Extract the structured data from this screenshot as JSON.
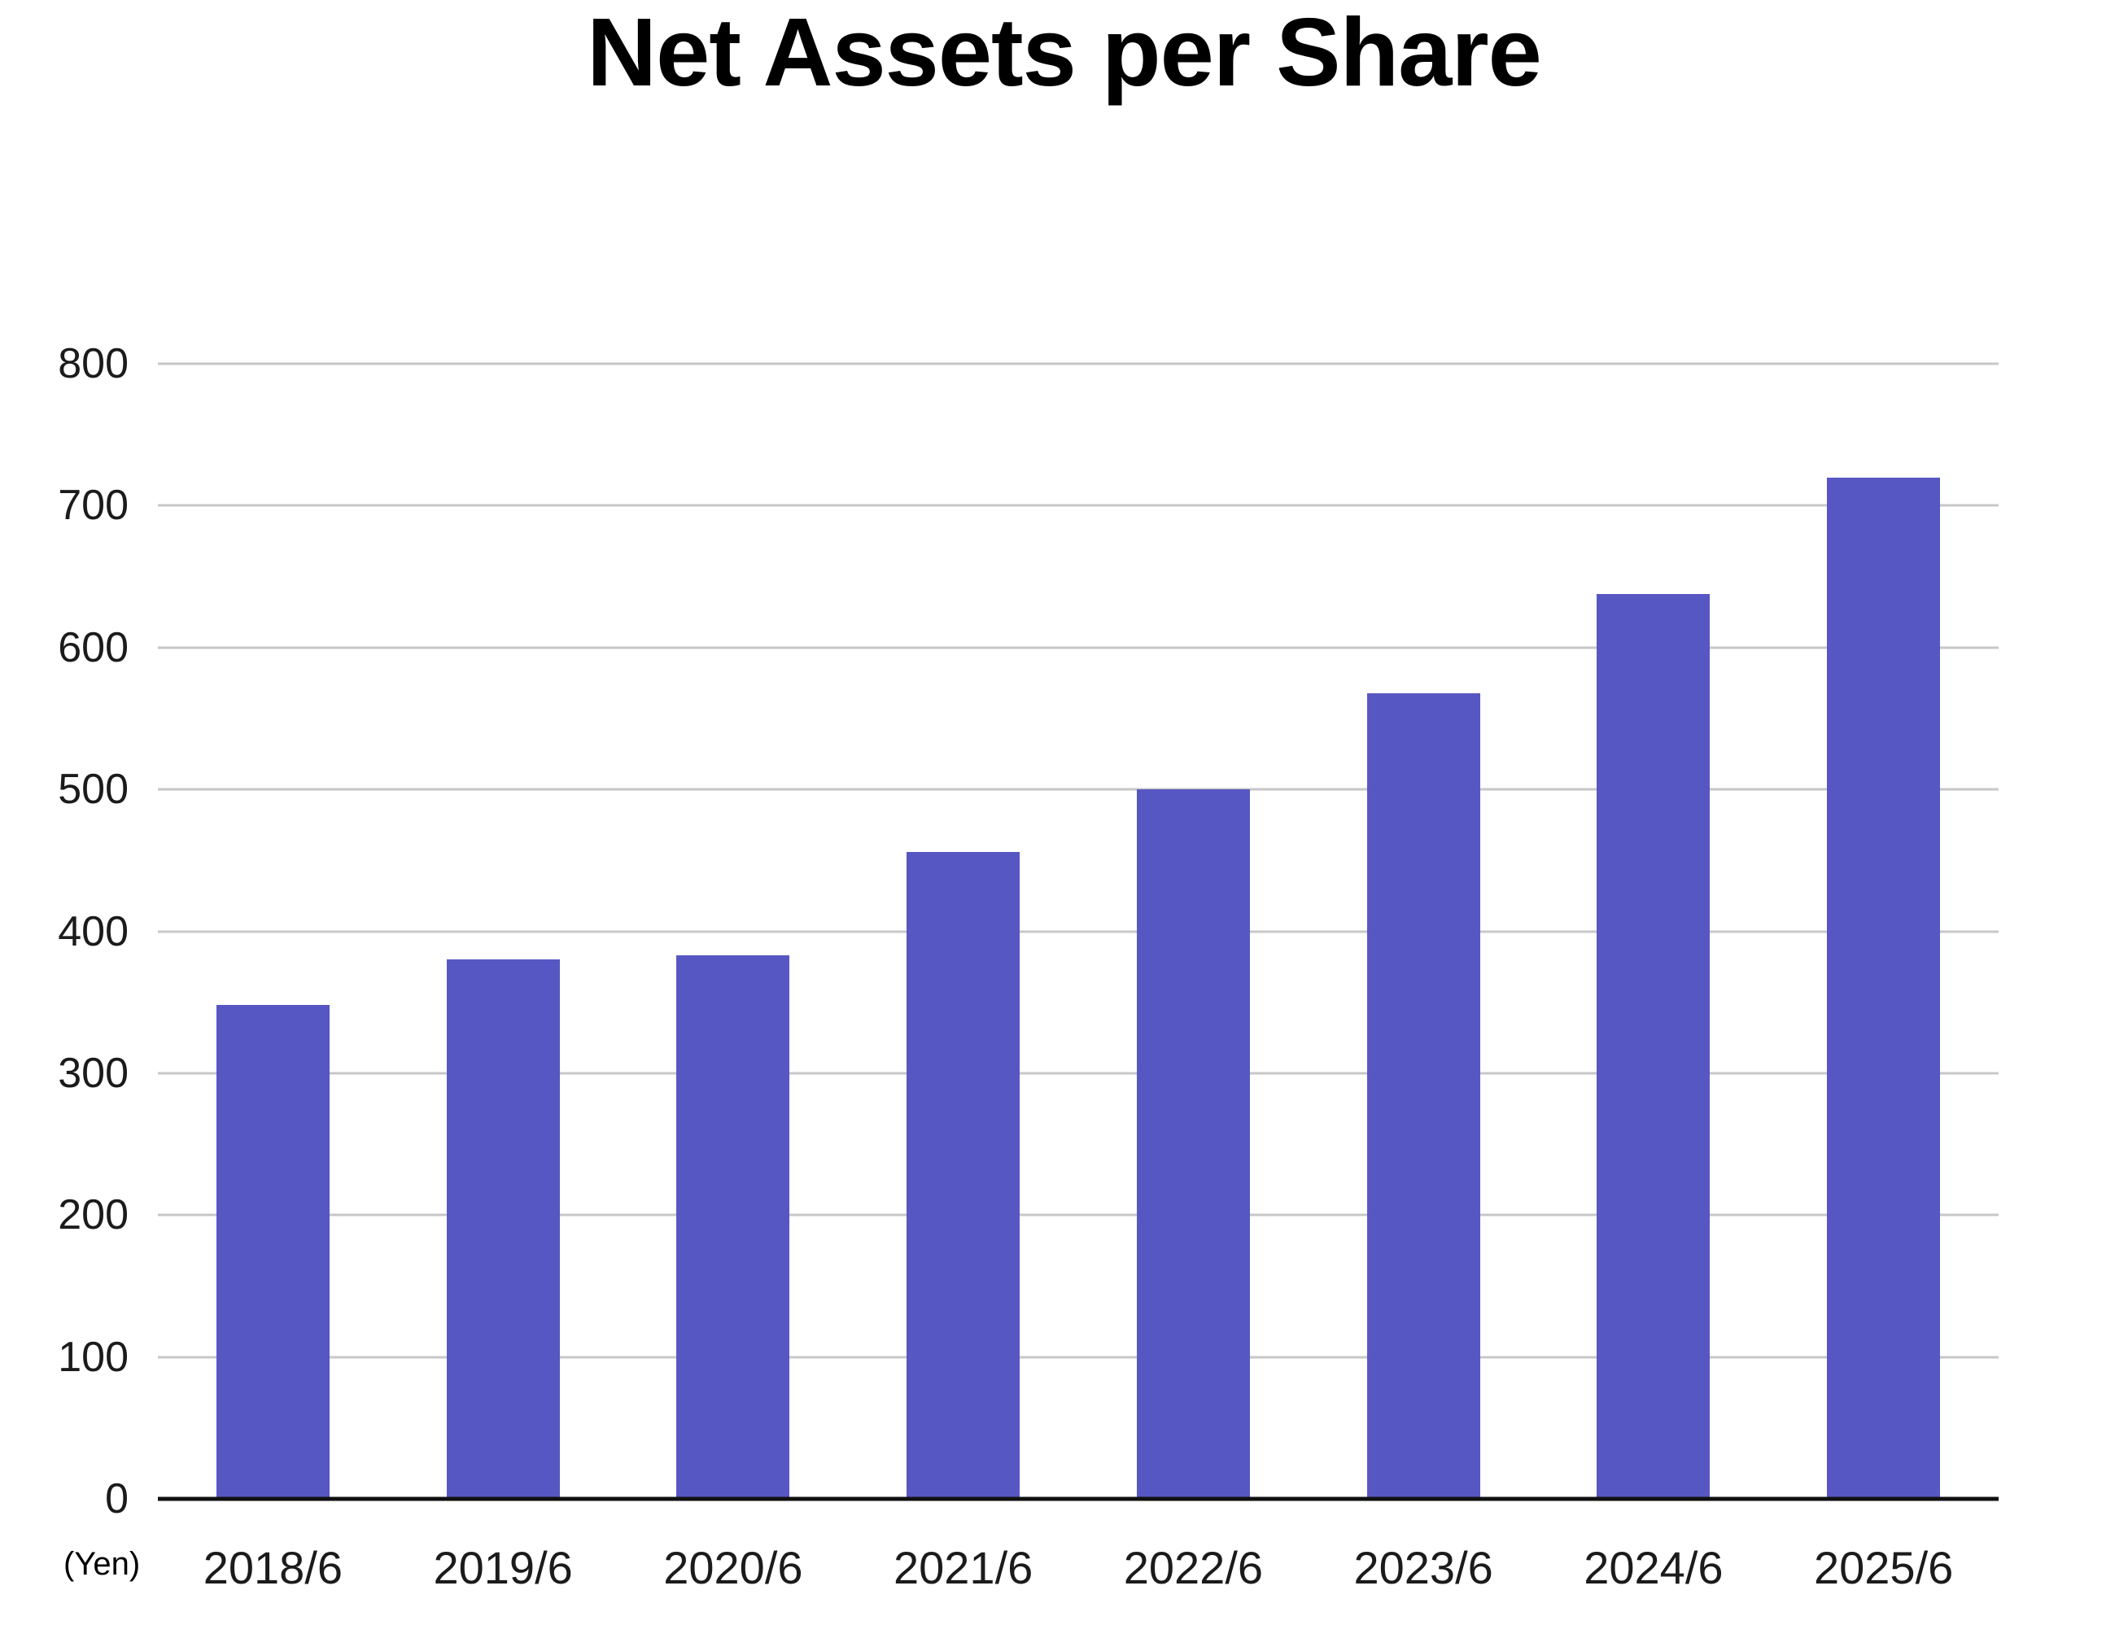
{
  "chart_data": {
    "type": "bar",
    "title": "Net Assets per Share",
    "unit_label": "(Yen)",
    "categories": [
      "2018/6",
      "2019/6",
      "2020/6",
      "2021/6",
      "2022/6",
      "2023/6",
      "2024/6",
      "2025/6"
    ],
    "values": [
      348,
      380,
      383,
      456,
      500,
      568,
      638,
      720
    ],
    "xlabel": "",
    "ylabel": "(Yen)",
    "ylim": [
      0,
      800
    ],
    "yticks": [
      0,
      100,
      200,
      300,
      400,
      500,
      600,
      700,
      800
    ],
    "grid": true,
    "legend": false,
    "colors": {
      "bar": "#5757c3",
      "gridline": "#c7c7c7",
      "axis_line": "#111111",
      "text": "#1b1b1b",
      "title": "#000000",
      "background": "#ffffff"
    }
  }
}
